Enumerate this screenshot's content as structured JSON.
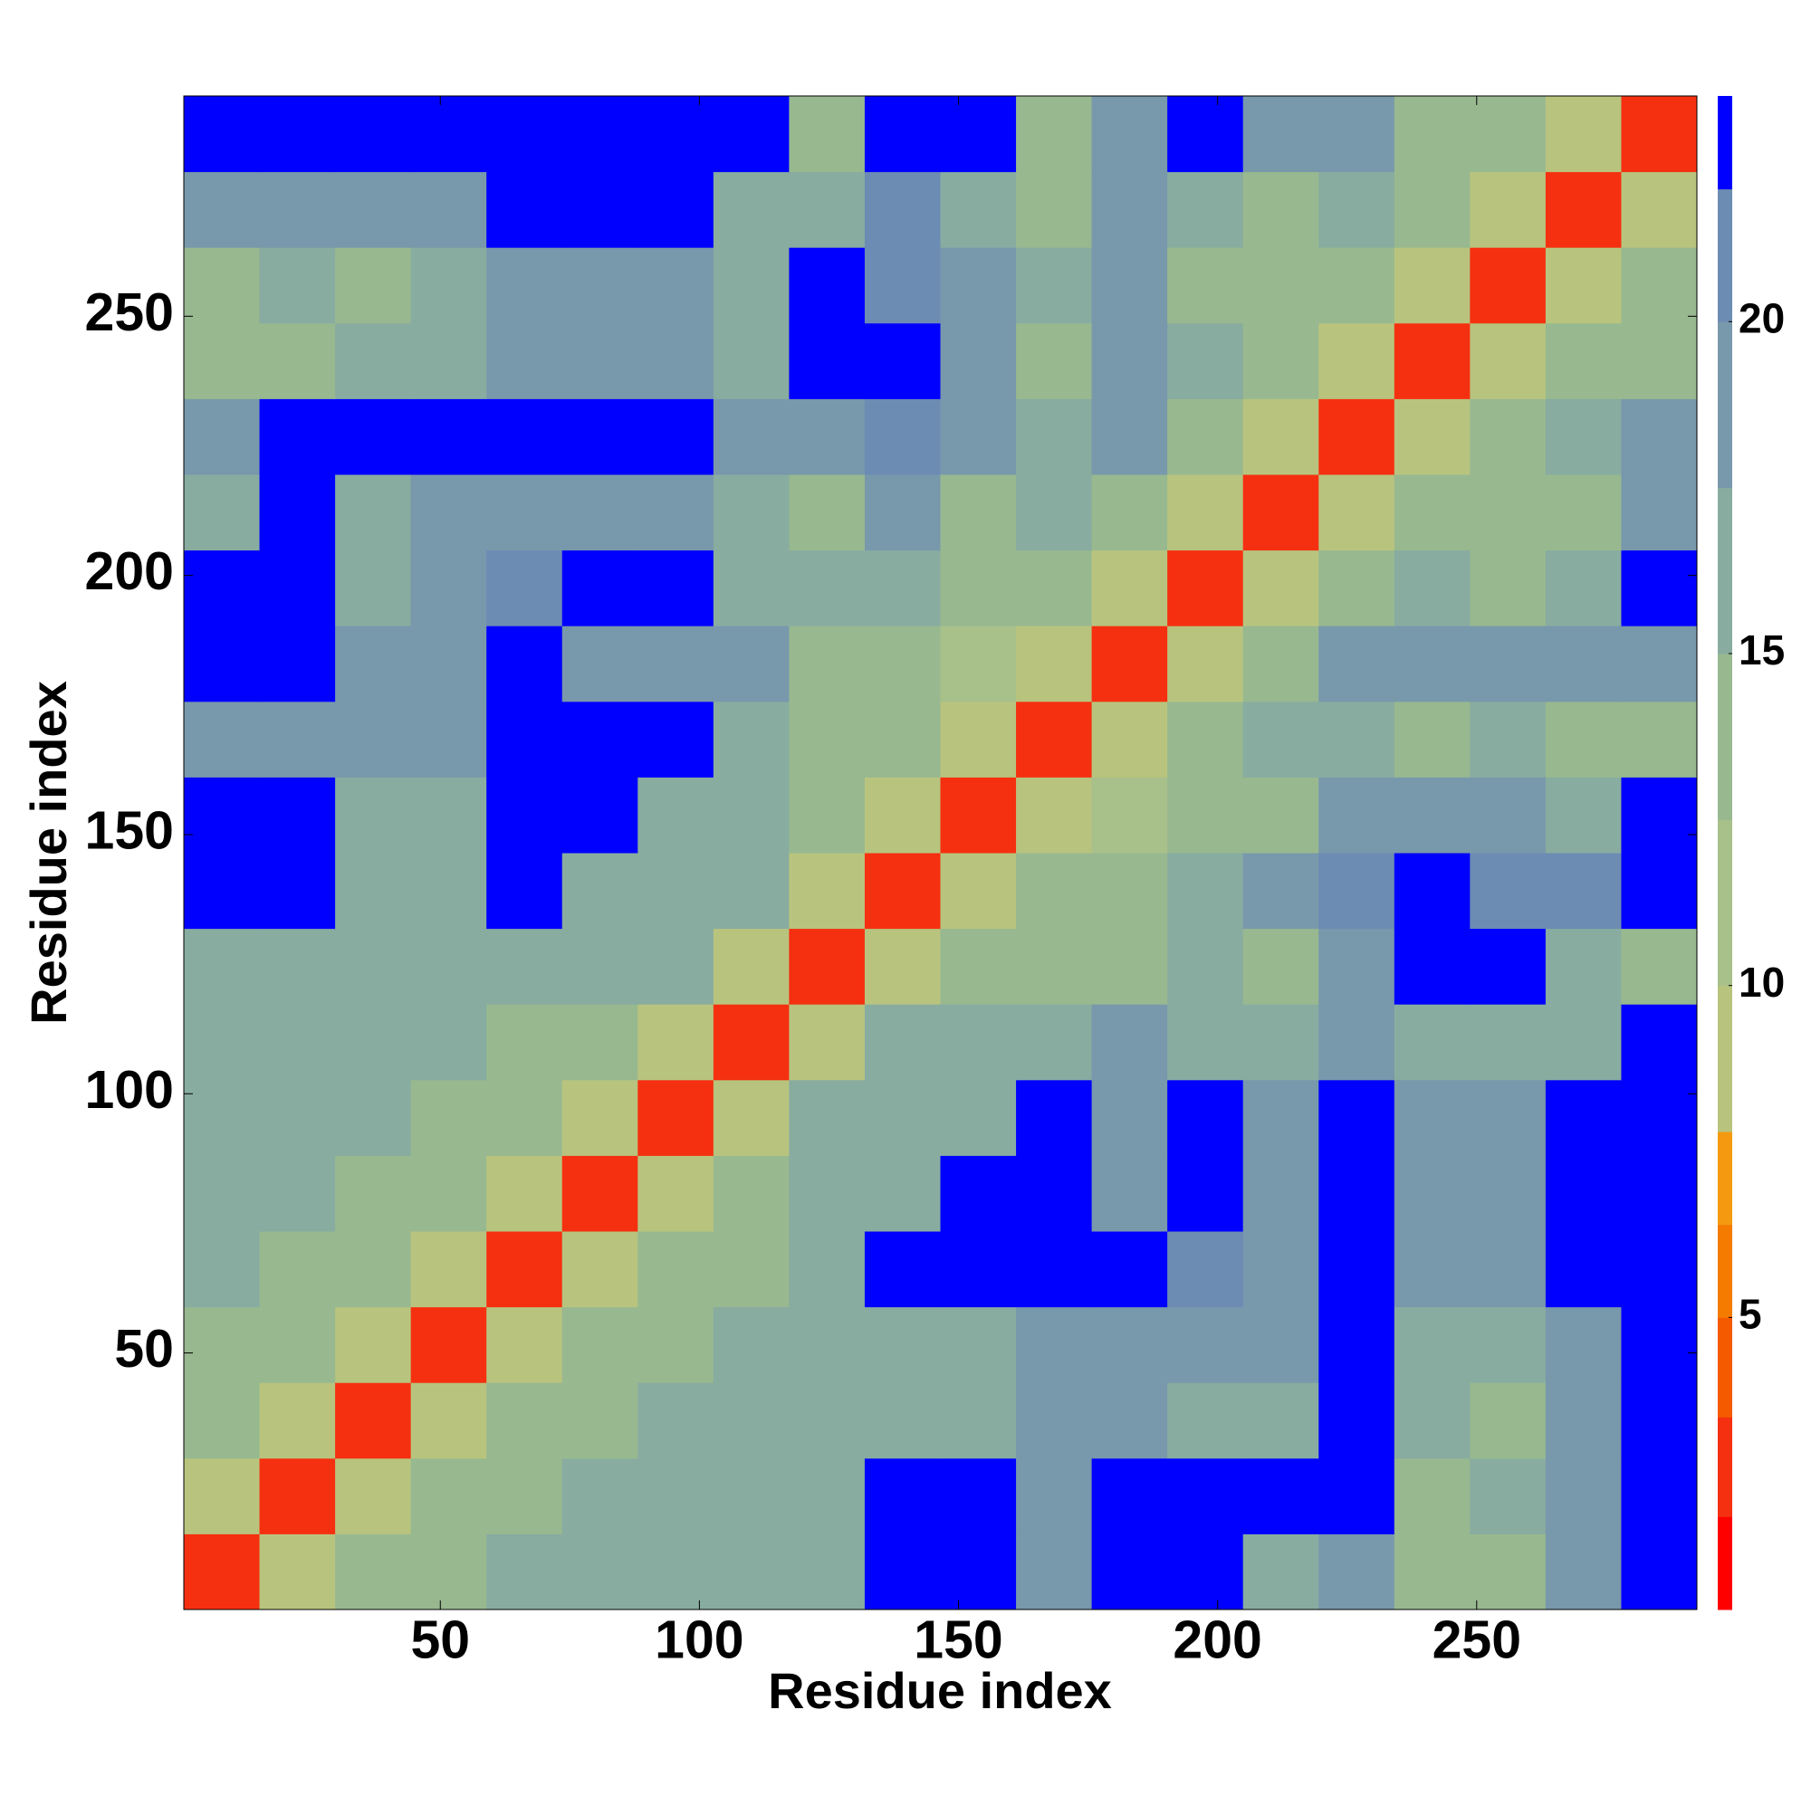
{
  "chart_data": {
    "type": "heatmap",
    "xlabel": "Residue index",
    "ylabel": "Residue index",
    "xlim": [
      0.5,
      292.5
    ],
    "ylim": [
      0.5,
      292.5
    ],
    "xticks": [
      50,
      100,
      150,
      200,
      250
    ],
    "yticks": [
      50,
      100,
      150,
      200,
      250
    ],
    "xbins": [
      0.5,
      15.1,
      29.7,
      44.3,
      58.9,
      73.5,
      88.1,
      102.7,
      117.3,
      131.9,
      146.5,
      161.1,
      175.7,
      190.3,
      204.9,
      219.5,
      234.1,
      248.7,
      263.3,
      277.9,
      292.5
    ],
    "ybins": [
      0.5,
      15.1,
      29.7,
      44.3,
      58.9,
      73.5,
      88.1,
      102.7,
      117.3,
      131.9,
      146.5,
      161.1,
      175.7,
      190.3,
      204.9,
      219.5,
      234.1,
      248.7,
      263.3,
      277.9,
      292.5
    ],
    "z": [
      [
        3,
        10,
        14,
        15,
        16,
        16,
        17,
        17,
        17,
        23,
        23,
        19,
        23,
        23,
        16,
        19,
        14,
        15,
        18,
        23
      ],
      [
        10,
        3,
        10,
        14,
        15,
        16,
        16,
        17,
        17,
        23,
        23,
        19,
        23,
        23,
        23,
        23,
        15,
        16,
        20,
        23
      ],
      [
        14,
        10,
        3,
        10,
        14,
        15,
        16,
        16,
        17,
        17,
        17,
        19,
        20,
        17,
        16,
        23,
        16,
        15,
        18,
        23
      ],
      [
        15,
        14,
        10,
        3,
        10,
        14,
        15,
        16,
        17,
        17,
        17,
        19,
        20,
        18,
        18,
        23,
        16,
        16,
        20,
        23
      ],
      [
        16,
        15,
        14,
        10,
        3,
        10,
        14,
        15,
        17,
        23,
        23,
        23,
        23,
        21,
        20,
        23,
        19,
        18,
        23,
        23
      ],
      [
        16,
        16,
        15,
        14,
        10,
        3,
        10,
        14,
        17,
        16,
        23,
        23,
        20,
        23,
        20,
        23,
        19,
        19,
        23,
        23
      ],
      [
        17,
        16,
        16,
        15,
        14,
        10,
        3,
        10,
        16,
        16,
        16,
        23,
        20,
        23,
        20,
        23,
        20,
        20,
        23,
        23
      ],
      [
        17,
        17,
        16,
        16,
        15,
        14,
        10,
        3,
        10,
        16,
        16,
        17,
        18,
        16,
        16,
        20,
        17,
        16,
        17,
        23
      ],
      [
        17,
        17,
        17,
        17,
        17,
        17,
        16,
        10,
        3,
        10,
        15,
        14,
        15,
        17,
        14,
        20,
        23,
        23,
        16,
        13
      ],
      [
        23,
        23,
        17,
        17,
        23,
        16,
        16,
        16,
        10,
        3,
        10,
        13,
        13,
        16,
        19,
        21,
        23,
        21,
        21,
        23
      ],
      [
        23,
        23,
        17,
        17,
        23,
        23,
        16,
        16,
        15,
        10,
        3,
        10,
        12,
        13,
        15,
        20,
        18,
        19,
        16,
        23
      ],
      [
        19,
        19,
        19,
        19,
        23,
        23,
        23,
        17,
        14,
        13,
        10,
        3,
        9,
        14,
        16,
        17,
        15,
        16,
        15,
        15
      ],
      [
        23,
        23,
        20,
        20,
        23,
        20,
        20,
        18,
        15,
        13,
        12,
        9,
        3,
        9,
        13,
        19,
        19,
        19,
        18,
        18
      ],
      [
        23,
        23,
        17,
        18,
        21,
        23,
        23,
        16,
        17,
        16,
        13,
        14,
        9,
        3,
        9,
        13,
        16,
        15,
        16,
        23
      ],
      [
        16,
        23,
        16,
        18,
        20,
        20,
        20,
        16,
        14,
        19,
        15,
        16,
        13,
        9,
        3,
        9,
        14,
        15,
        15,
        19
      ],
      [
        19,
        23,
        23,
        23,
        23,
        23,
        23,
        20,
        20,
        21,
        20,
        17,
        19,
        13,
        9,
        3,
        10,
        13,
        16,
        18
      ],
      [
        14,
        15,
        16,
        16,
        19,
        19,
        20,
        17,
        23,
        23,
        18,
        15,
        19,
        16,
        14,
        10,
        3,
        9,
        13,
        15
      ],
      [
        15,
        16,
        15,
        16,
        18,
        19,
        20,
        16,
        23,
        21,
        19,
        16,
        19,
        15,
        15,
        13,
        9,
        3,
        9,
        13
      ],
      [
        18,
        20,
        18,
        20,
        23,
        23,
        23,
        17,
        16,
        21,
        16,
        15,
        18,
        16,
        15,
        16,
        13,
        9,
        3,
        9
      ],
      [
        23,
        23,
        23,
        23,
        23,
        23,
        23,
        23,
        13,
        23,
        23,
        15,
        18,
        23,
        19,
        18,
        15,
        13,
        9,
        3
      ]
    ],
    "colorbar": {
      "levels": [
        0.6,
        2,
        3.5,
        5,
        6.4,
        7.8,
        10,
        12.5,
        15,
        17.5,
        20,
        22,
        23.4
      ],
      "colors": [
        "#ff0000",
        "#f53010",
        "#f55a00",
        "#f57a00",
        "#f59a10",
        "#b8c47e",
        "#a8c08a",
        "#98b890",
        "#88aca0",
        "#7898ac",
        "#6c8cb4",
        "#0000ff"
      ],
      "ticks": [
        5,
        10,
        15,
        20
      ]
    }
  }
}
